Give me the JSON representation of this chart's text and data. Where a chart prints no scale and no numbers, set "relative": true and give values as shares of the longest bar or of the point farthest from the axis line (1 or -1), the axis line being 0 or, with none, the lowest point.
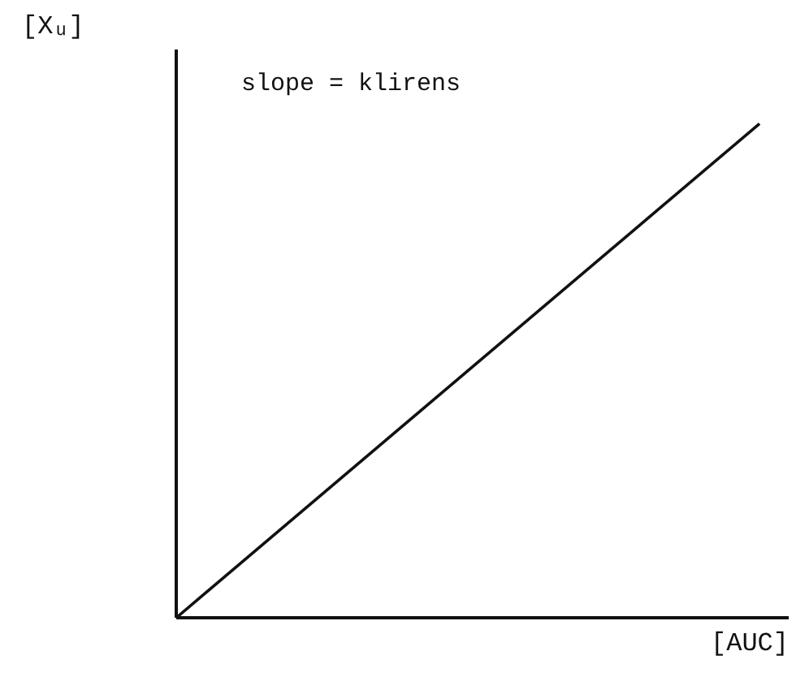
{
  "chart_data": {
    "type": "line",
    "relative": true,
    "ylabel": "[Xᵤ]",
    "xlabel": "[AUC]",
    "annotations": [
      "slope = klirens"
    ],
    "categories": [
      null,
      null
    ],
    "series": [
      {
        "color": "#111111",
        "values": [
          0,
          1
        ]
      }
    ],
    "marker": "none",
    "line_style": "solid"
  }
}
